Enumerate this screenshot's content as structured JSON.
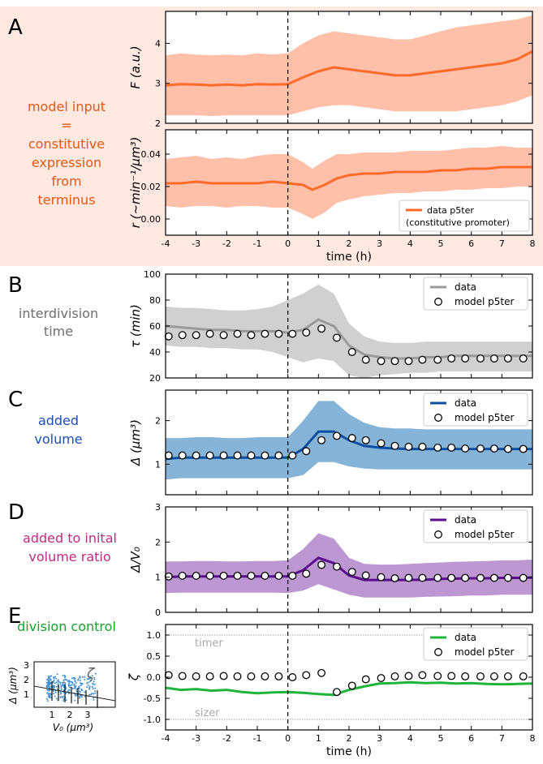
{
  "figure": {
    "time_ticks": [
      "-4",
      "-3",
      "-2",
      "-1",
      "0",
      "1",
      "2",
      "3",
      "4",
      "5",
      "6",
      "7",
      "8"
    ],
    "time_label": "time (h)",
    "colors": {
      "orange": "#ff6a2a",
      "orange_band": "#ffbda4",
      "input_box": "#fde9df",
      "gray": "#9a9a9a",
      "gray_band": "#cdcdcd",
      "blue": "#0b4ea2",
      "blue_band": "#7fb0d6",
      "purple": "#5a0d8c",
      "purple_band": "#b991d0",
      "green": "#1fb53a"
    }
  },
  "panels": {
    "A": {
      "letter": "A",
      "left_text": [
        "model input",
        "=",
        "constitutive",
        "expression",
        "from",
        "terminus"
      ],
      "text_color": "#e0571b"
    },
    "B": {
      "letter": "B",
      "left_text": [
        "interdivision",
        "time"
      ],
      "text_color": "#6e6e6e"
    },
    "C": {
      "letter": "C",
      "left_text": [
        "added",
        "volume"
      ],
      "text_color": "#1c4eb5"
    },
    "D": {
      "letter": "D",
      "left_text": [
        "added to inital",
        "volume ratio"
      ],
      "text_color": "#c22a86"
    },
    "E": {
      "letter": "E",
      "left_text": [
        "division control"
      ],
      "text_color": "#1aa02c"
    }
  },
  "inset": {
    "ylabel": "Δ (μm³)",
    "xlabel": "V₀ (μm³)",
    "yticks": [
      "1",
      "2",
      "3"
    ],
    "xticks": [
      "1",
      "2",
      "3"
    ],
    "zeta_glyph": "ζ"
  },
  "chart_data": [
    {
      "id": "A1",
      "type": "area",
      "ylabel": "F (a.u.)",
      "ylim": [
        2,
        4.8
      ],
      "yticks": [
        "2",
        "3",
        "4"
      ],
      "x": [
        -4,
        -3.5,
        -3,
        -2.5,
        -2,
        -1.5,
        -1,
        -0.5,
        0,
        0.5,
        1,
        1.5,
        2,
        2.5,
        3,
        3.5,
        4,
        4.5,
        5,
        5.5,
        6,
        6.5,
        7,
        7.5,
        8
      ],
      "series": [
        {
          "mean": [
            2.95,
            2.98,
            2.97,
            2.95,
            2.97,
            2.95,
            2.98,
            2.97,
            2.98,
            3.15,
            3.3,
            3.4,
            3.35,
            3.3,
            3.25,
            3.2,
            3.2,
            3.25,
            3.3,
            3.35,
            3.4,
            3.45,
            3.5,
            3.6,
            3.8
          ],
          "upper": [
            3.7,
            3.75,
            3.72,
            3.7,
            3.72,
            3.7,
            3.75,
            3.72,
            3.75,
            4.0,
            4.2,
            4.3,
            4.25,
            4.2,
            4.15,
            4.1,
            4.1,
            4.2,
            4.3,
            4.4,
            4.45,
            4.5,
            4.55,
            4.6,
            4.7
          ],
          "lower": [
            2.2,
            2.2,
            2.2,
            2.18,
            2.2,
            2.2,
            2.2,
            2.2,
            2.2,
            2.3,
            2.4,
            2.45,
            2.45,
            2.4,
            2.35,
            2.3,
            2.3,
            2.3,
            2.3,
            2.3,
            2.35,
            2.4,
            2.45,
            2.55,
            2.7
          ]
        }
      ]
    },
    {
      "id": "A2",
      "type": "area",
      "ylabel": "r (~min⁻¹/μm³)",
      "ylim": [
        -0.01,
        0.055
      ],
      "yticks": [
        "0.00",
        "0.02",
        "0.04"
      ],
      "x": [
        -4,
        -3.5,
        -3,
        -2.5,
        -2,
        -1.5,
        -1,
        -0.5,
        0,
        0.5,
        0.8,
        1.2,
        1.6,
        2,
        2.5,
        3,
        3.5,
        4,
        4.5,
        5,
        5.5,
        6,
        6.5,
        7,
        7.5,
        8
      ],
      "legend": [
        "data p5ter",
        "(constitutive promoter)"
      ],
      "series": [
        {
          "mean": [
            0.022,
            0.022,
            0.023,
            0.022,
            0.022,
            0.022,
            0.022,
            0.023,
            0.022,
            0.021,
            0.018,
            0.021,
            0.025,
            0.027,
            0.028,
            0.028,
            0.029,
            0.029,
            0.029,
            0.03,
            0.03,
            0.031,
            0.031,
            0.032,
            0.032,
            0.032
          ],
          "upper": [
            0.037,
            0.038,
            0.039,
            0.037,
            0.038,
            0.037,
            0.039,
            0.04,
            0.04,
            0.035,
            0.031,
            0.036,
            0.04,
            0.04,
            0.041,
            0.041,
            0.041,
            0.042,
            0.042,
            0.042,
            0.043,
            0.044,
            0.044,
            0.045,
            0.044,
            0.044
          ],
          "lower": [
            0.008,
            0.007,
            0.008,
            0.008,
            0.007,
            0.008,
            0.008,
            0.007,
            0.007,
            0.003,
            0.0,
            0.004,
            0.01,
            0.012,
            0.014,
            0.015,
            0.016,
            0.016,
            0.017,
            0.017,
            0.018,
            0.018,
            0.019,
            0.019,
            0.02,
            0.02
          ]
        }
      ]
    },
    {
      "id": "B",
      "type": "line",
      "ylabel": "τ (min)",
      "ylim": [
        20,
        100
      ],
      "yticks": [
        "20",
        "40",
        "60",
        "80",
        "100"
      ],
      "x": [
        -4,
        -3.5,
        -3,
        -2.5,
        -2,
        -1.5,
        -1,
        -0.5,
        0,
        0.5,
        1,
        1.5,
        2,
        2.5,
        3,
        3.5,
        4,
        4.5,
        5,
        5.5,
        6,
        6.5,
        7,
        7.5,
        8
      ],
      "legend": [
        "data",
        "model p5ter"
      ],
      "series": [
        {
          "name": "data",
          "mean": [
            60,
            59,
            58,
            57,
            57,
            56,
            56,
            56,
            55,
            57,
            65,
            60,
            45,
            38,
            36,
            35,
            35,
            36,
            36,
            37,
            37,
            37,
            37,
            37,
            37
          ],
          "upper": [
            75,
            74,
            74,
            73,
            72,
            72,
            73,
            75,
            80,
            85,
            92,
            85,
            62,
            52,
            48,
            47,
            47,
            48,
            48,
            48,
            48,
            48,
            48,
            48,
            48
          ],
          "lower": [
            45,
            44,
            44,
            43,
            43,
            42,
            42,
            40,
            36,
            32,
            35,
            33,
            22,
            20,
            22,
            23,
            24,
            24,
            25,
            25,
            25,
            25,
            25,
            25,
            25
          ]
        }
      ],
      "model": {
        "name": "model p5ter",
        "x": [
          -3.9,
          -3.45,
          -3.0,
          -2.55,
          -2.1,
          -1.65,
          -1.2,
          -0.75,
          -0.3,
          0.15,
          0.6,
          1.1,
          1.6,
          2.1,
          2.55,
          3.05,
          3.5,
          3.95,
          4.4,
          4.9,
          5.35,
          5.8,
          6.3,
          6.75,
          7.2,
          7.7
        ],
        "y": [
          52,
          53,
          53,
          54,
          53,
          54,
          53,
          54,
          54,
          54,
          55,
          58,
          51,
          40,
          34,
          33,
          33,
          33,
          34,
          34,
          35,
          35,
          35,
          35,
          35,
          35
        ]
      }
    },
    {
      "id": "C",
      "type": "line",
      "ylabel": "Δ (μm³)",
      "ylim": [
        0.3,
        2.7
      ],
      "yticks": [
        "1",
        "2"
      ],
      "x": [
        -4,
        -3.5,
        -3,
        -2.5,
        -2,
        -1.5,
        -1,
        -0.5,
        0,
        0.5,
        1,
        1.5,
        2,
        2.5,
        3,
        3.5,
        4,
        4.5,
        5,
        5.5,
        6,
        6.5,
        7,
        7.5,
        8
      ],
      "legend": [
        "data",
        "model p5ter"
      ],
      "series": [
        {
          "name": "data",
          "mean": [
            1.12,
            1.15,
            1.15,
            1.15,
            1.15,
            1.15,
            1.15,
            1.15,
            1.15,
            1.35,
            1.75,
            1.75,
            1.55,
            1.42,
            1.38,
            1.36,
            1.35,
            1.35,
            1.35,
            1.35,
            1.35,
            1.35,
            1.35,
            1.35,
            1.35
          ],
          "upper": [
            1.6,
            1.6,
            1.62,
            1.62,
            1.6,
            1.6,
            1.62,
            1.62,
            1.62,
            2.0,
            2.45,
            2.45,
            2.15,
            1.95,
            1.85,
            1.82,
            1.82,
            1.8,
            1.8,
            1.8,
            1.8,
            1.8,
            1.8,
            1.8,
            1.8
          ],
          "lower": [
            0.65,
            0.68,
            0.68,
            0.68,
            0.68,
            0.68,
            0.68,
            0.68,
            0.68,
            0.75,
            1.05,
            1.05,
            0.95,
            0.9,
            0.88,
            0.88,
            0.88,
            0.88,
            0.88,
            0.88,
            0.88,
            0.88,
            0.88,
            0.88,
            0.88
          ]
        }
      ],
      "model": {
        "name": "model p5ter",
        "x": [
          -3.9,
          -3.45,
          -3.0,
          -2.55,
          -2.1,
          -1.65,
          -1.2,
          -0.75,
          -0.3,
          0.15,
          0.6,
          1.1,
          1.6,
          2.1,
          2.55,
          3.05,
          3.5,
          3.95,
          4.4,
          4.9,
          5.35,
          5.8,
          6.3,
          6.75,
          7.2,
          7.7
        ],
        "y": [
          1.2,
          1.2,
          1.2,
          1.2,
          1.2,
          1.2,
          1.2,
          1.2,
          1.2,
          1.2,
          1.3,
          1.55,
          1.65,
          1.6,
          1.55,
          1.48,
          1.42,
          1.4,
          1.4,
          1.38,
          1.38,
          1.36,
          1.36,
          1.36,
          1.35,
          1.35
        ]
      }
    },
    {
      "id": "D",
      "type": "line",
      "ylabel": "Δ/V₀",
      "ylim": [
        0,
        3
      ],
      "yticks": [
        "0",
        "1",
        "2",
        "3"
      ],
      "x": [
        -4,
        -3.5,
        -3,
        -2.5,
        -2,
        -1.5,
        -1,
        -0.5,
        0,
        0.5,
        1,
        1.5,
        2,
        2.5,
        3,
        3.5,
        4,
        4.5,
        5,
        5.5,
        6,
        6.5,
        7,
        7.5,
        8
      ],
      "legend": [
        "data",
        "model p5ter"
      ],
      "series": [
        {
          "name": "data",
          "mean": [
            1.0,
            1.02,
            1.02,
            1.02,
            1.02,
            1.02,
            1.02,
            1.02,
            1.02,
            1.2,
            1.55,
            1.4,
            1.05,
            0.92,
            0.92,
            0.92,
            0.92,
            0.93,
            0.95,
            0.96,
            0.97,
            0.97,
            0.98,
            0.98,
            0.99
          ],
          "upper": [
            1.45,
            1.45,
            1.46,
            1.46,
            1.45,
            1.45,
            1.46,
            1.46,
            1.48,
            1.8,
            2.25,
            2.1,
            1.55,
            1.38,
            1.36,
            1.36,
            1.38,
            1.4,
            1.42,
            1.44,
            1.45,
            1.46,
            1.48,
            1.48,
            1.5
          ],
          "lower": [
            0.55,
            0.56,
            0.56,
            0.56,
            0.56,
            0.56,
            0.56,
            0.56,
            0.55,
            0.62,
            0.8,
            0.65,
            0.5,
            0.42,
            0.42,
            0.42,
            0.42,
            0.44,
            0.45,
            0.46,
            0.48,
            0.48,
            0.5,
            0.5,
            0.5
          ]
        }
      ],
      "model": {
        "name": "model p5ter",
        "x": [
          -3.9,
          -3.45,
          -3.0,
          -2.55,
          -2.1,
          -1.65,
          -1.2,
          -0.75,
          -0.3,
          0.15,
          0.6,
          1.1,
          1.6,
          2.1,
          2.55,
          3.05,
          3.5,
          3.95,
          4.4,
          4.9,
          5.35,
          5.8,
          6.3,
          6.75,
          7.2,
          7.7
        ],
        "y": [
          1.02,
          1.04,
          1.04,
          1.04,
          1.04,
          1.04,
          1.04,
          1.04,
          1.04,
          1.04,
          1.1,
          1.35,
          1.3,
          1.15,
          1.05,
          1.0,
          0.97,
          0.98,
          0.98,
          0.98,
          0.98,
          0.98,
          0.98,
          0.98,
          0.98,
          0.98
        ]
      }
    },
    {
      "id": "E",
      "type": "line",
      "ylabel": "ζ",
      "ylim": [
        -1.25,
        1.25
      ],
      "yticks": [
        "-1.0",
        "-0.5",
        "0.0",
        "0.5",
        "1.0"
      ],
      "ref_lines": [
        {
          "y": 1.0,
          "label": "timer"
        },
        {
          "y": -1.0,
          "label": "sizer"
        }
      ],
      "x": [
        -4,
        -3.5,
        -3,
        -2.5,
        -2,
        -1.5,
        -1,
        -0.5,
        0,
        0.5,
        1,
        1.5,
        2,
        2.5,
        3,
        3.5,
        4,
        4.5,
        5,
        5.5,
        6,
        6.5,
        7,
        7.5,
        8
      ],
      "legend": [
        "data",
        "model p5ter"
      ],
      "series": [
        {
          "name": "data",
          "mean": [
            -0.25,
            -0.3,
            -0.28,
            -0.32,
            -0.3,
            -0.35,
            -0.38,
            -0.36,
            -0.35,
            -0.37,
            -0.4,
            -0.42,
            -0.3,
            -0.22,
            -0.15,
            -0.14,
            -0.12,
            -0.14,
            -0.13,
            -0.15,
            -0.14,
            -0.16,
            -0.17,
            -0.16,
            -0.15
          ]
        }
      ],
      "model": {
        "name": "model p5ter",
        "x": [
          -3.9,
          -3.45,
          -3.0,
          -2.55,
          -2.1,
          -1.65,
          -1.2,
          -0.75,
          -0.3,
          0.15,
          0.6,
          1.1,
          1.6,
          2.1,
          2.55,
          3.05,
          3.5,
          3.95,
          4.4,
          4.9,
          5.35,
          5.8,
          6.3,
          6.75,
          7.2,
          7.7
        ],
        "y": [
          0.05,
          0.03,
          0.02,
          0.02,
          0.03,
          0.02,
          0.02,
          0.02,
          0.02,
          0.0,
          0.05,
          0.1,
          -0.35,
          -0.2,
          -0.05,
          -0.02,
          0.02,
          0.03,
          0.05,
          0.03,
          0.03,
          0.02,
          0.02,
          0.02,
          0.02,
          0.02
        ]
      }
    }
  ]
}
